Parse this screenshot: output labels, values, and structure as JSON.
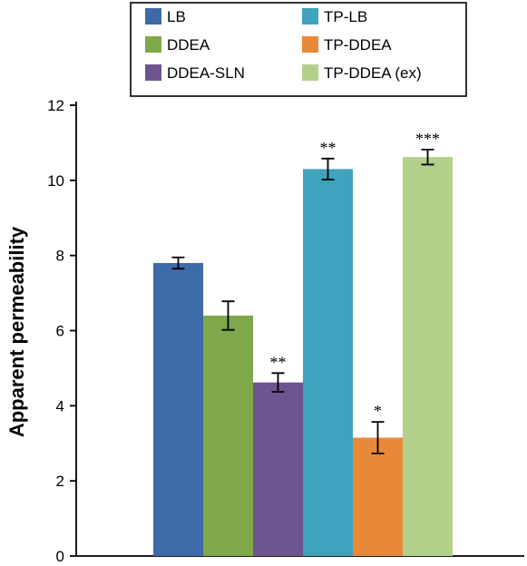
{
  "chart_data": {
    "type": "bar",
    "categories": [
      "LB",
      "DDEA",
      "DDEA-SLN",
      "TP-LB",
      "TP-DDEA",
      "TP-DDEA (ex)"
    ],
    "values": [
      7.8,
      6.4,
      4.62,
      10.3,
      3.15,
      10.62
    ],
    "errors": [
      0.15,
      0.38,
      0.25,
      0.28,
      0.42,
      0.2
    ],
    "significance": [
      "",
      "",
      "**",
      "**",
      "*",
      "***"
    ],
    "colors": [
      "#3d6aa8",
      "#7fa84a",
      "#6e5590",
      "#3fa3bd",
      "#e8893a",
      "#b2d08a"
    ],
    "title": "",
    "xlabel": "",
    "ylabel": "Apparent permeability",
    "ylim": [
      0,
      12
    ],
    "yticks": [
      "0",
      "2",
      "4",
      "6",
      "8",
      "10",
      "12"
    ],
    "legend": {
      "position": "top",
      "columns": 2,
      "entries": [
        "LB",
        "TP-LB",
        "DDEA",
        "TP-DDEA",
        "DDEA-SLN",
        "TP-DDEA (ex)"
      ]
    },
    "grid": false
  }
}
